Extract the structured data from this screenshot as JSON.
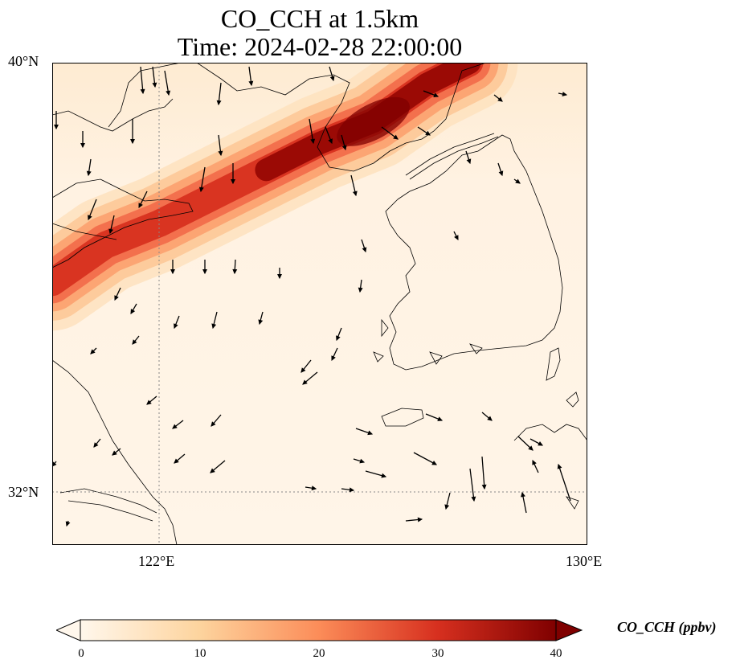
{
  "title": {
    "line1": "CO_CCH at 1.5km",
    "line2": "Time: 2024-02-28 22:00:00"
  },
  "axes": {
    "lat_labels": [
      "40°N",
      "32°N"
    ],
    "lon_labels": [
      "122°E",
      "130°E"
    ],
    "lon_range": [
      120,
      130
    ],
    "lat_range": [
      31,
      40
    ],
    "gridlines": "dotted"
  },
  "colorbar": {
    "label": "CO_CCH (ppbv)",
    "ticks": [
      "0",
      "10",
      "20",
      "30",
      "40"
    ],
    "range": [
      0,
      40
    ],
    "extend": "both",
    "colormap": [
      "#fff7ec",
      "#fdd49e",
      "#fc8d59",
      "#d7301f",
      "#7f0000"
    ]
  },
  "plume": {
    "description_values": "high CO band from NW (Shandong/Bohai) toward NE (Korea/Yellow Sea), peak ~40 ppbv near 125.5-127E 37.5-39.5N",
    "centerline": [
      [
        120.0,
        35.9
      ],
      [
        121.0,
        36.6
      ],
      [
        122.0,
        37.0
      ],
      [
        123.0,
        37.5
      ],
      [
        124.0,
        38.0
      ],
      [
        125.0,
        38.5
      ],
      [
        126.0,
        38.9
      ],
      [
        127.0,
        39.6
      ],
      [
        127.8,
        40.0
      ]
    ],
    "peak_ppbv": 40
  }
}
